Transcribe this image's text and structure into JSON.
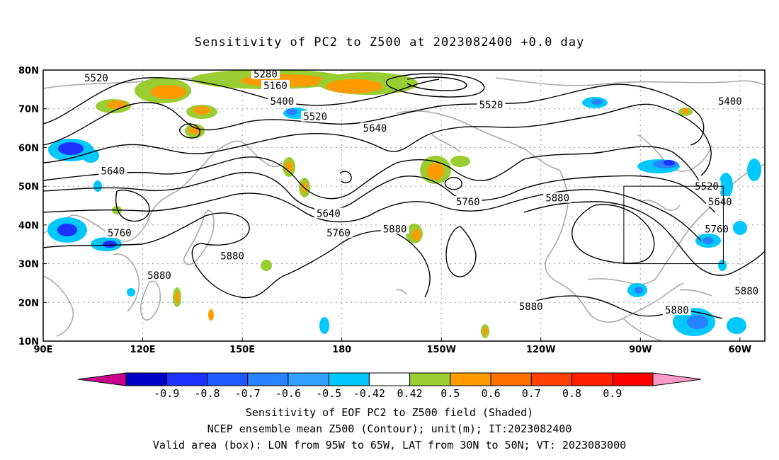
{
  "title": "Sensitivity of PC2 to Z500 at 2023082400 +0.0 day",
  "lat_labels": [
    "80N",
    "70N",
    "60N",
    "50N",
    "40N",
    "30N",
    "20N",
    "10N"
  ],
  "lon_labels": [
    "90E",
    "120E",
    "150E",
    "180",
    "150W",
    "120W",
    "90W",
    "60W"
  ],
  "colorbar": {
    "labels": [
      "-0.9",
      "-0.8",
      "-0.7",
      "-0.6",
      "-0.5",
      "-0.42",
      "0.42",
      "0.5",
      "0.6",
      "0.7",
      "0.8",
      "0.9"
    ],
    "colors": [
      "#c8008c",
      "#0000c8",
      "#1e32ff",
      "#1e5aff",
      "#2882ff",
      "#32a0ff",
      "#00c8ff",
      "#ffffff",
      "#9acd32",
      "#ff9a00",
      "#ff7000",
      "#ff4000",
      "#ff1e00",
      "#ff0000",
      "#ff9ac8"
    ]
  },
  "contour_labels": [
    {
      "text": "5520",
      "lon": 106,
      "lat": 78
    },
    {
      "text": "5280",
      "lon": 157,
      "lat": 79
    },
    {
      "text": "5160",
      "lon": 160,
      "lat": 76
    },
    {
      "text": "5400",
      "lon": 162,
      "lat": 72
    },
    {
      "text": "5520",
      "lon": 172,
      "lat": 68
    },
    {
      "text": "5640",
      "lon": 190,
      "lat": 65
    },
    {
      "text": "5520",
      "lon": 225,
      "lat": 71
    },
    {
      "text": "5400",
      "lon": 297,
      "lat": 72
    },
    {
      "text": "5640",
      "lon": 111,
      "lat": 54
    },
    {
      "text": "5640",
      "lon": 176,
      "lat": 43
    },
    {
      "text": "5760",
      "lon": 179,
      "lat": 38
    },
    {
      "text": "5760",
      "lon": 218,
      "lat": 46
    },
    {
      "text": "5880",
      "lon": 196,
      "lat": 39
    },
    {
      "text": "5880",
      "lon": 245,
      "lat": 47
    },
    {
      "text": "5520",
      "lon": 290,
      "lat": 50
    },
    {
      "text": "5640",
      "lon": 294,
      "lat": 46
    },
    {
      "text": "5760",
      "lon": 293,
      "lat": 39
    },
    {
      "text": "5760",
      "lon": 113,
      "lat": 38
    },
    {
      "text": "5880",
      "lon": 147,
      "lat": 32
    },
    {
      "text": "5880",
      "lon": 125,
      "lat": 27
    },
    {
      "text": "5880",
      "lon": 302,
      "lat": 23
    },
    {
      "text": "5880",
      "lon": 237,
      "lat": 19
    },
    {
      "text": "5880",
      "lon": 281,
      "lat": 18
    }
  ],
  "valid_box": {
    "lon_min": 265,
    "lon_max": 295,
    "lat_min": 30,
    "lat_max": 50
  },
  "captions": {
    "line1": "Sensitivity of EOF PC2 to Z500 field (Shaded)",
    "line2": "NCEP ensemble mean Z500 (Contour); unit(m); IT:2023082400",
    "line3": "Valid area (box): LON from 95W to 65W, LAT from 30N to 50N; VT: 2023083000"
  }
}
